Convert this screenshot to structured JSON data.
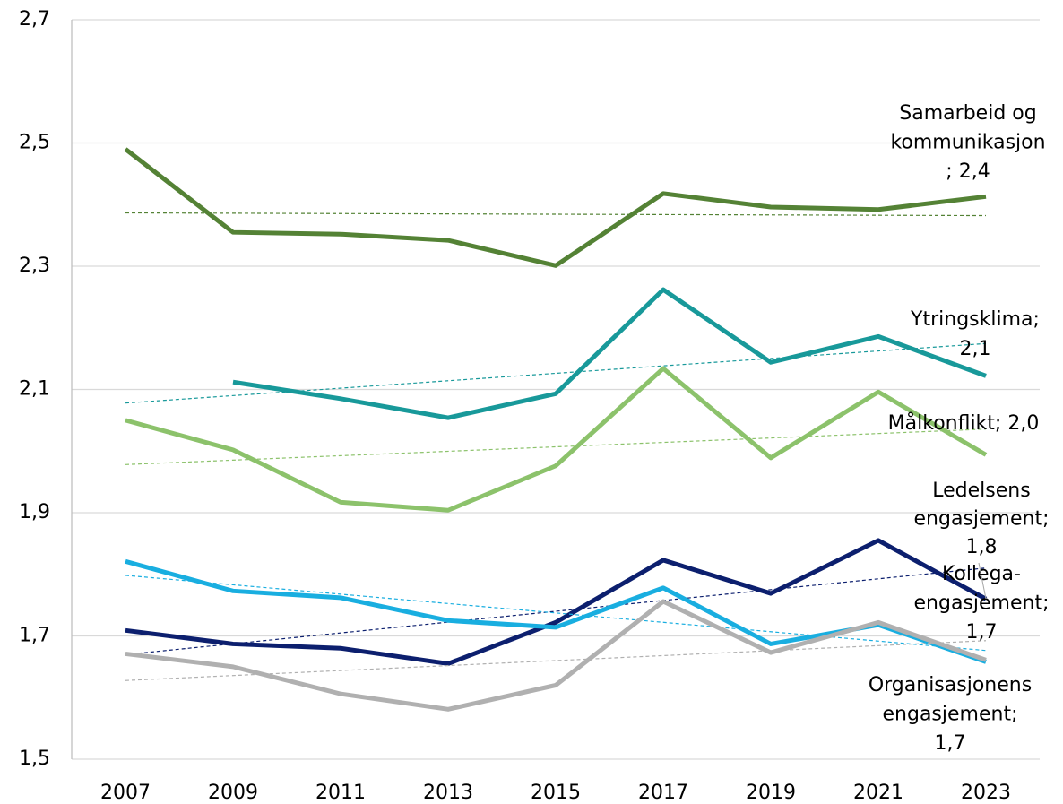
{
  "chart_data": {
    "type": "line",
    "categories": [
      "2007",
      "2009",
      "2011",
      "2013",
      "2015",
      "2017",
      "2019",
      "2021",
      "2023"
    ],
    "ylim": [
      1.5,
      2.7
    ],
    "yticks": [
      {
        "value": 1.5,
        "label": "1,5"
      },
      {
        "value": 1.7,
        "label": "1,7"
      },
      {
        "value": 1.9,
        "label": "1,9"
      },
      {
        "value": 2.1,
        "label": "2,1"
      },
      {
        "value": 2.3,
        "label": "2,3"
      },
      {
        "value": 2.5,
        "label": "2,5"
      },
      {
        "value": 2.7,
        "label": "2,7"
      }
    ],
    "grid": true,
    "trendline": true,
    "series": [
      {
        "name": "Samarbeid og kommunikasjon",
        "color": "#548235",
        "label": [
          "Samarbeid og",
          "kommunikasjon",
          "; 2,4"
        ],
        "values": [
          2.49,
          2.355,
          2.352,
          2.342,
          2.301,
          2.418,
          2.396,
          2.392,
          2.413
        ]
      },
      {
        "name": "Ytringsklima",
        "color": "#18999a",
        "label": [
          "Ytringsklima;",
          "2,1"
        ],
        "values": [
          null,
          2.112,
          2.085,
          2.054,
          2.093,
          2.262,
          2.144,
          2.186,
          2.122
        ]
      },
      {
        "name": "Målkonflikt",
        "color": "#8cc26b",
        "label": [
          "Målkonflikt; 2,0"
        ],
        "values": [
          2.05,
          2.002,
          1.917,
          1.904,
          1.976,
          2.134,
          1.989,
          2.096,
          1.994
        ]
      },
      {
        "name": "Ledelsens engasjement",
        "color": "#0c1f6e",
        "label": [
          "Ledelsens",
          "engasjement;",
          "1,8"
        ],
        "values": [
          1.709,
          1.687,
          1.68,
          1.655,
          1.722,
          1.823,
          1.769,
          1.855,
          1.76
        ]
      },
      {
        "name": "Kollega-engasjement",
        "color": "#19aee0",
        "label": [
          "Kollega-",
          "engasjement;",
          "1,7"
        ],
        "values": [
          1.821,
          1.773,
          1.762,
          1.725,
          1.714,
          1.778,
          1.687,
          1.718,
          1.658
        ]
      },
      {
        "name": "Organisasjonens engasjement",
        "color": "#b0b0b0",
        "label": [
          "Organisasjonens",
          "engasjement;",
          "1,7"
        ],
        "values": [
          1.671,
          1.65,
          1.606,
          1.581,
          1.62,
          1.756,
          1.673,
          1.722,
          1.661
        ]
      }
    ]
  }
}
